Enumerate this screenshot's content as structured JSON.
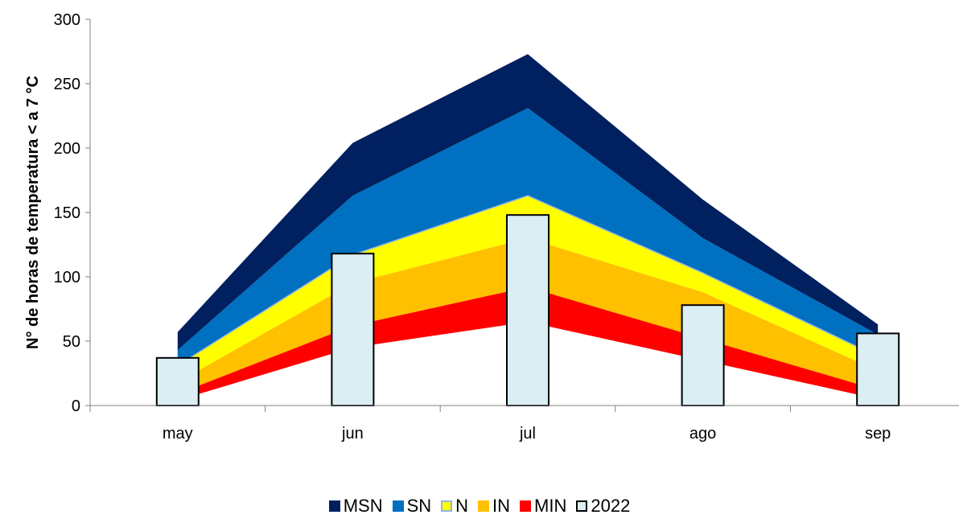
{
  "chart_data": {
    "type": "area",
    "categories": [
      "may",
      "jun",
      "jul",
      "ago",
      "sep"
    ],
    "ylabel": "N° de horas de temperatura < a 7 °C",
    "xlabel": "",
    "title": "",
    "ylim": [
      0,
      300
    ],
    "yticks": [
      0,
      50,
      100,
      150,
      200,
      250,
      300
    ],
    "grid": false,
    "legend": "bottom",
    "bands": [
      {
        "name": "MSN",
        "color": "#002060",
        "lower": [
          43,
          163,
          231,
          130,
          55
        ],
        "upper": [
          57,
          204,
          273,
          160,
          63
        ]
      },
      {
        "name": "SN",
        "color": "#0070C0",
        "lower": [
          31,
          117,
          163,
          103,
          38
        ],
        "upper": [
          43,
          163,
          231,
          130,
          55
        ]
      },
      {
        "name": "N",
        "color": "#FFFF00",
        "lower": [
          18,
          95,
          130,
          88,
          27
        ],
        "upper": [
          31,
          117,
          163,
          103,
          38
        ]
      },
      {
        "name": "IN",
        "color": "#FFC000",
        "lower": [
          9,
          62,
          92,
          52,
          12
        ],
        "upper": [
          18,
          95,
          130,
          88,
          27
        ]
      },
      {
        "name": "MIN",
        "color": "#FF0000",
        "lower": [
          4,
          45,
          65,
          35,
          5
        ],
        "upper": [
          9,
          62,
          92,
          52,
          12
        ]
      }
    ],
    "series": [
      {
        "name": "2022",
        "type": "bar",
        "color": "#DAEEF3",
        "values": [
          37,
          118,
          148,
          78,
          56
        ]
      }
    ]
  },
  "legend": {
    "items": [
      {
        "label": "MSN",
        "color": "#002060",
        "style": "fill"
      },
      {
        "label": "SN",
        "color": "#0070C0",
        "style": "fill"
      },
      {
        "label": "N",
        "color": "#FFFF00",
        "style": "outline-yellow"
      },
      {
        "label": "IN",
        "color": "#FFC000",
        "style": "fill"
      },
      {
        "label": "MIN",
        "color": "#FF0000",
        "style": "fill"
      },
      {
        "label": "2022",
        "color": "#DAEEF3",
        "style": "bar"
      }
    ]
  }
}
